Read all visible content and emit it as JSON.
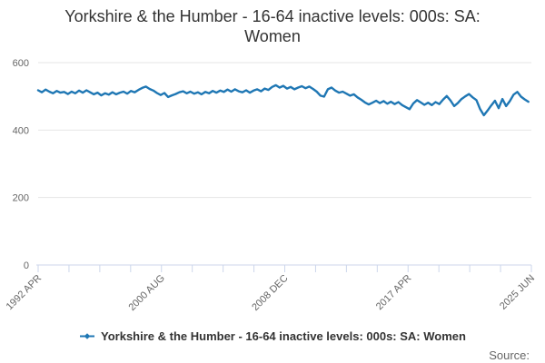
{
  "title": {
    "line1": "Yorkshire & the Humber - 16-64 inactive levels: 000s: SA:",
    "line2": "Women"
  },
  "legend": {
    "label": "Yorkshire & the Humber - 16-64 inactive levels: 000s: SA: Women"
  },
  "source": {
    "label": "Source:"
  },
  "colors": {
    "line": "#1f77b4",
    "grid": "#e6e6e6",
    "axis": "#ccd6eb",
    "tick_label": "#666666",
    "title": "#333333",
    "legend_text": "#333333",
    "source_text": "#666666"
  },
  "chart_data": {
    "type": "line",
    "title": "Yorkshire & the Humber - 16-64 inactive levels: 000s: SA: Women",
    "xlabel": "",
    "ylabel": "",
    "series_name": "Yorkshire & the Humber - 16-64 inactive levels: 000s: SA: Women",
    "x_unit": "decimal_year_quarterly_estimates",
    "x_start": 1992.25,
    "x_step": 0.25,
    "xlim": [
      1992.25,
      2025.45
    ],
    "ylim": [
      0,
      600
    ],
    "y_ticks": [
      0,
      200,
      400,
      600
    ],
    "x_tick_count": 17,
    "x_labeled_every": 4,
    "x_tick_labels": [
      "1992 APR",
      "2000 AUG",
      "2008 DEC",
      "2017 APR",
      "2025 JUN"
    ],
    "grid": "horizontal",
    "legend_position": "bottom",
    "values": [
      518,
      512,
      520,
      514,
      509,
      516,
      511,
      513,
      507,
      514,
      509,
      517,
      511,
      518,
      512,
      506,
      511,
      503,
      509,
      505,
      512,
      506,
      511,
      514,
      508,
      516,
      512,
      519,
      525,
      529,
      522,
      517,
      510,
      504,
      510,
      498,
      503,
      507,
      512,
      515,
      509,
      514,
      508,
      512,
      506,
      513,
      509,
      516,
      511,
      517,
      513,
      520,
      514,
      521,
      515,
      512,
      518,
      511,
      517,
      521,
      515,
      523,
      519,
      528,
      533,
      526,
      531,
      523,
      528,
      521,
      526,
      530,
      524,
      529,
      522,
      514,
      502,
      499,
      521,
      526,
      517,
      511,
      514,
      508,
      502,
      506,
      497,
      490,
      482,
      476,
      481,
      487,
      480,
      486,
      478,
      484,
      477,
      483,
      474,
      468,
      462,
      479,
      489,
      482,
      475,
      481,
      474,
      483,
      477,
      490,
      501,
      488,
      471,
      480,
      492,
      500,
      507,
      497,
      489,
      462,
      444,
      458,
      473,
      487,
      465,
      492,
      471,
      486,
      505,
      513,
      499,
      491,
      484
    ]
  }
}
